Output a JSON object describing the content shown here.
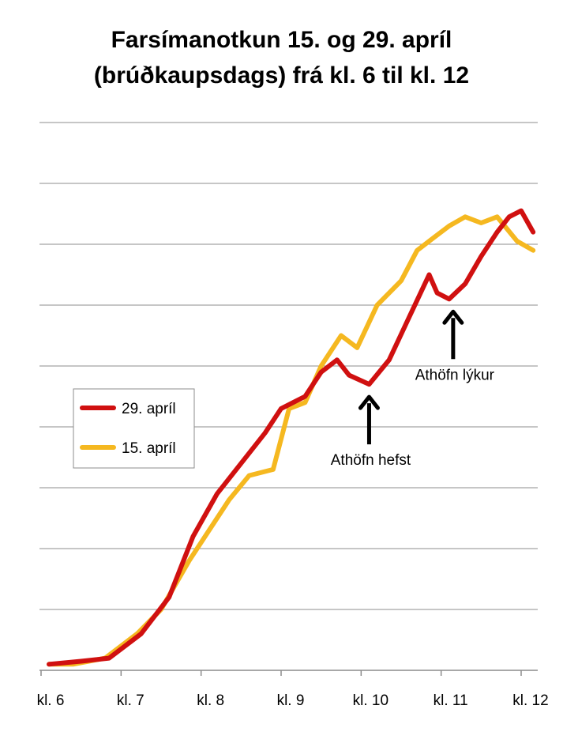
{
  "chart_data": {
    "type": "line",
    "title_lines": [
      "Farsímanotkun 15. og 29. apríl",
      "(brúðkaupsdags) frá kl. 6 til kl. 12"
    ],
    "xlabel": "",
    "ylabel": "",
    "categories": [
      "kl. 6",
      "kl. 7",
      "kl. 8",
      "kl. 9",
      "kl. 10",
      "kl. 11",
      "kl. 12"
    ],
    "xlim": [
      6,
      12
    ],
    "ylim": [
      0,
      9
    ],
    "grid": true,
    "legend_position": "left",
    "series": [
      {
        "name": "29. apríl",
        "color": "#d01010",
        "x": [
          6.1,
          6.5,
          6.85,
          7.25,
          7.6,
          7.9,
          8.2,
          8.5,
          8.8,
          9.0,
          9.15,
          9.3,
          9.5,
          9.7,
          9.85,
          10.1,
          10.35,
          10.6,
          10.85,
          10.95,
          11.1,
          11.3,
          11.5,
          11.7,
          11.85,
          12.0,
          12.15
        ],
        "values": [
          0.1,
          0.15,
          0.2,
          0.6,
          1.2,
          2.2,
          2.9,
          3.4,
          3.9,
          4.3,
          4.4,
          4.5,
          4.9,
          5.1,
          4.85,
          4.7,
          5.1,
          5.8,
          6.5,
          6.2,
          6.1,
          6.35,
          6.8,
          7.2,
          7.45,
          7.55,
          7.2
        ]
      },
      {
        "name": "15. apríl",
        "color": "#f5b820",
        "x": [
          6.1,
          6.4,
          6.8,
          7.2,
          7.5,
          7.85,
          8.1,
          8.35,
          8.6,
          8.9,
          9.1,
          9.3,
          9.5,
          9.75,
          9.95,
          10.2,
          10.5,
          10.7,
          10.9,
          11.1,
          11.3,
          11.5,
          11.7,
          11.95,
          12.15
        ],
        "values": [
          0.1,
          0.1,
          0.2,
          0.6,
          1.0,
          1.8,
          2.3,
          2.8,
          3.2,
          3.3,
          4.3,
          4.4,
          5.0,
          5.5,
          5.3,
          6.0,
          6.4,
          6.9,
          7.1,
          7.3,
          7.45,
          7.35,
          7.45,
          7.05,
          6.9
        ]
      }
    ],
    "annotations": [
      {
        "text": "Athöfn hefst",
        "x": 10.1,
        "y": 4.7
      },
      {
        "text": "Athöfn lýkur",
        "x": 11.15,
        "y": 6.1
      }
    ]
  }
}
